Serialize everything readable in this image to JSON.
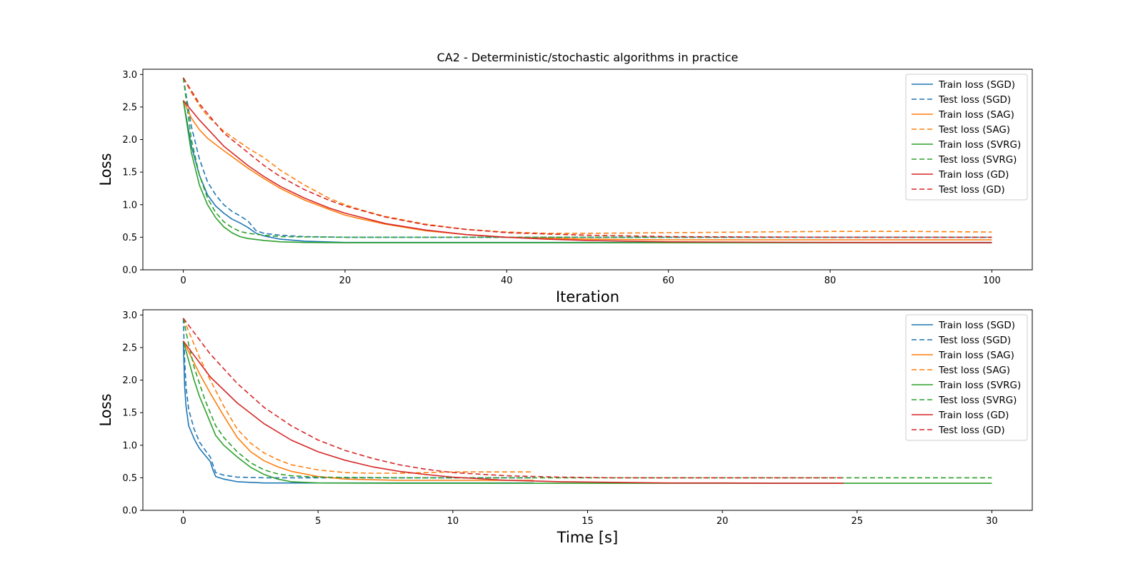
{
  "chart_data": [
    {
      "type": "line",
      "title": "CA2 - Deterministic/stochastic algorithms in practice",
      "xlabel": "Iteration",
      "ylabel": "Loss",
      "xlim": [
        -5,
        105
      ],
      "ylim": [
        0,
        3.08
      ],
      "xticks": [
        0,
        20,
        40,
        60,
        80,
        100
      ],
      "yticks": [
        0.0,
        0.5,
        1.0,
        1.5,
        2.0,
        2.5,
        3.0
      ],
      "grid": false,
      "legend_position": "top-right",
      "series": [
        {
          "name": "Train loss (SGD)",
          "color": "#1f77b4",
          "dash": "solid",
          "x": [
            0,
            1,
            2,
            3,
            4,
            5,
            6,
            7,
            8,
            9,
            10,
            12,
            15,
            20,
            30,
            50,
            100
          ],
          "y": [
            2.6,
            1.9,
            1.45,
            1.15,
            0.98,
            0.87,
            0.78,
            0.72,
            0.65,
            0.56,
            0.52,
            0.47,
            0.44,
            0.42,
            0.42,
            0.42,
            0.42
          ]
        },
        {
          "name": "Test loss (SGD)",
          "color": "#1f77b4",
          "dash": "dashed",
          "x": [
            0,
            1,
            2,
            3,
            4,
            5,
            6,
            7,
            8,
            9,
            10,
            12,
            15,
            20,
            30,
            50,
            100
          ],
          "y": [
            2.95,
            2.2,
            1.7,
            1.35,
            1.15,
            1.0,
            0.9,
            0.83,
            0.75,
            0.6,
            0.56,
            0.53,
            0.51,
            0.5,
            0.5,
            0.5,
            0.5
          ]
        },
        {
          "name": "Train loss (SAG)",
          "color": "#ff7f0e",
          "dash": "solid",
          "x": [
            0,
            1,
            2,
            3,
            5,
            8,
            10,
            12,
            15,
            18,
            20,
            22,
            25,
            30,
            35,
            40,
            50,
            60,
            80,
            100
          ],
          "y": [
            2.6,
            2.33,
            2.15,
            2.02,
            1.83,
            1.56,
            1.4,
            1.25,
            1.07,
            0.93,
            0.84,
            0.78,
            0.7,
            0.6,
            0.54,
            0.5,
            0.47,
            0.46,
            0.46,
            0.46
          ]
        },
        {
          "name": "Test loss (SAG)",
          "color": "#ff7f0e",
          "dash": "dashed",
          "x": [
            0,
            1,
            2,
            3,
            5,
            8,
            10,
            12,
            15,
            18,
            20,
            22,
            25,
            30,
            35,
            40,
            45,
            50,
            60,
            70,
            80,
            90,
            100
          ],
          "y": [
            2.95,
            2.72,
            2.52,
            2.36,
            2.13,
            1.87,
            1.72,
            1.53,
            1.3,
            1.1,
            1.0,
            0.92,
            0.82,
            0.7,
            0.62,
            0.58,
            0.56,
            0.56,
            0.57,
            0.58,
            0.59,
            0.59,
            0.58
          ]
        },
        {
          "name": "Train loss (SVRG)",
          "color": "#2ca02c",
          "dash": "solid",
          "x": [
            0,
            1,
            2,
            3,
            4,
            5,
            6,
            7,
            8,
            10,
            12,
            15,
            20,
            30,
            50,
            100
          ],
          "y": [
            2.6,
            1.8,
            1.3,
            1.0,
            0.8,
            0.66,
            0.57,
            0.51,
            0.48,
            0.45,
            0.43,
            0.42,
            0.415,
            0.415,
            0.415,
            0.415
          ]
        },
        {
          "name": "Test loss (SVRG)",
          "color": "#2ca02c",
          "dash": "dashed",
          "x": [
            0,
            1,
            2,
            3,
            4,
            5,
            6,
            7,
            8,
            10,
            12,
            15,
            20,
            30,
            50,
            100
          ],
          "y": [
            2.95,
            2.0,
            1.45,
            1.1,
            0.88,
            0.74,
            0.65,
            0.59,
            0.56,
            0.53,
            0.51,
            0.505,
            0.5,
            0.5,
            0.5,
            0.5
          ]
        },
        {
          "name": "Train loss (GD)",
          "color": "#d62728",
          "dash": "solid",
          "x": [
            0,
            2,
            5,
            8,
            10,
            12,
            15,
            18,
            20,
            25,
            30,
            35,
            40,
            45,
            50,
            60,
            80,
            100
          ],
          "y": [
            2.6,
            2.3,
            1.9,
            1.6,
            1.43,
            1.28,
            1.1,
            0.95,
            0.87,
            0.71,
            0.61,
            0.54,
            0.5,
            0.47,
            0.45,
            0.43,
            0.42,
            0.415
          ]
        },
        {
          "name": "Test loss (GD)",
          "color": "#d62728",
          "dash": "dashed",
          "x": [
            0,
            2,
            5,
            8,
            10,
            12,
            15,
            18,
            20,
            25,
            30,
            35,
            40,
            45,
            50,
            60,
            80,
            100
          ],
          "y": [
            2.95,
            2.55,
            2.1,
            1.8,
            1.6,
            1.43,
            1.23,
            1.07,
            0.98,
            0.81,
            0.69,
            0.62,
            0.57,
            0.55,
            0.53,
            0.51,
            0.5,
            0.5
          ]
        }
      ]
    },
    {
      "type": "line",
      "title": "",
      "xlabel": "Time [s]",
      "ylabel": "Loss",
      "xlim": [
        -1.5,
        31.5
      ],
      "ylim": [
        0,
        3.08
      ],
      "xticks": [
        0,
        5,
        10,
        15,
        20,
        25,
        30
      ],
      "yticks": [
        0.0,
        0.5,
        1.0,
        1.5,
        2.0,
        2.5,
        3.0
      ],
      "grid": false,
      "legend_position": "top-right",
      "series": [
        {
          "name": "Train loss (SGD)",
          "color": "#1f77b4",
          "dash": "solid",
          "x": [
            0,
            0.05,
            0.1,
            0.2,
            0.3,
            0.4,
            0.5,
            0.6,
            0.8,
            1.0,
            1.1,
            1.2,
            1.5,
            2.0,
            2.5,
            3.0,
            4.0,
            5.0,
            8.0,
            10.0,
            13.0
          ],
          "y": [
            2.6,
            1.9,
            1.6,
            1.3,
            1.2,
            1.1,
            1.02,
            0.95,
            0.85,
            0.75,
            0.62,
            0.52,
            0.48,
            0.44,
            0.43,
            0.42,
            0.42,
            0.42,
            0.42,
            0.42,
            0.42
          ]
        },
        {
          "name": "Test loss (SGD)",
          "color": "#1f77b4",
          "dash": "dashed",
          "x": [
            0,
            0.05,
            0.1,
            0.2,
            0.3,
            0.4,
            0.5,
            0.6,
            0.8,
            1.0,
            1.2,
            1.5,
            2.0,
            3.0,
            5.0,
            8.0,
            10.0,
            13.0
          ],
          "y": [
            2.95,
            2.3,
            1.9,
            1.55,
            1.4,
            1.25,
            1.15,
            1.05,
            0.93,
            0.82,
            0.58,
            0.54,
            0.51,
            0.5,
            0.5,
            0.5,
            0.5,
            0.5
          ]
        },
        {
          "name": "Train loss (SAG)",
          "color": "#ff7f0e",
          "dash": "solid",
          "x": [
            0,
            0.3,
            0.6,
            1.0,
            1.5,
            2.0,
            2.5,
            3.0,
            3.5,
            4.0,
            5.0,
            6.0,
            8.0,
            10.0,
            13.0
          ],
          "y": [
            2.6,
            2.35,
            2.1,
            1.8,
            1.45,
            1.12,
            0.9,
            0.76,
            0.67,
            0.6,
            0.52,
            0.48,
            0.46,
            0.46,
            0.46
          ]
        },
        {
          "name": "Test loss (SAG)",
          "color": "#ff7f0e",
          "dash": "dashed",
          "x": [
            0,
            0.3,
            0.6,
            1.0,
            1.5,
            2.0,
            2.5,
            3.0,
            3.5,
            4.0,
            5.0,
            6.0,
            7.0,
            8.0,
            9.0,
            10.0,
            11.0,
            12.0,
            13.0
          ],
          "y": [
            2.95,
            2.65,
            2.35,
            2.0,
            1.6,
            1.25,
            1.03,
            0.88,
            0.78,
            0.7,
            0.62,
            0.58,
            0.57,
            0.57,
            0.58,
            0.59,
            0.59,
            0.59,
            0.59
          ]
        },
        {
          "name": "Train loss (SVRG)",
          "color": "#2ca02c",
          "dash": "solid",
          "x": [
            0,
            0.2,
            0.4,
            0.6,
            0.8,
            1.0,
            1.2,
            1.5,
            2.0,
            2.5,
            3.0,
            3.5,
            4.0,
            5.0,
            8.0,
            10.0,
            15.0,
            20.0,
            25.0,
            30.0
          ],
          "y": [
            2.6,
            2.3,
            2.0,
            1.75,
            1.55,
            1.35,
            1.15,
            1.0,
            0.82,
            0.66,
            0.55,
            0.48,
            0.44,
            0.42,
            0.415,
            0.415,
            0.415,
            0.415,
            0.415,
            0.415
          ]
        },
        {
          "name": "Test loss (SVRG)",
          "color": "#2ca02c",
          "dash": "dashed",
          "x": [
            0,
            0.2,
            0.4,
            0.6,
            0.8,
            1.0,
            1.2,
            1.5,
            2.0,
            2.5,
            3.0,
            3.5,
            4.0,
            5.0,
            8.0,
            10.0,
            15.0,
            20.0,
            25.0,
            30.0
          ],
          "y": [
            2.95,
            2.55,
            2.2,
            1.95,
            1.7,
            1.5,
            1.3,
            1.12,
            0.9,
            0.73,
            0.62,
            0.56,
            0.53,
            0.51,
            0.5,
            0.5,
            0.5,
            0.5,
            0.5,
            0.5
          ]
        },
        {
          "name": "Train loss (GD)",
          "color": "#d62728",
          "dash": "solid",
          "x": [
            0,
            1,
            2,
            3,
            4,
            5,
            6,
            7,
            8,
            9,
            10,
            12,
            14,
            16,
            18,
            20,
            22,
            24.5
          ],
          "y": [
            2.6,
            2.05,
            1.65,
            1.33,
            1.08,
            0.9,
            0.77,
            0.67,
            0.6,
            0.55,
            0.51,
            0.46,
            0.44,
            0.43,
            0.42,
            0.42,
            0.415,
            0.415
          ]
        },
        {
          "name": "Test loss (GD)",
          "color": "#d62728",
          "dash": "dashed",
          "x": [
            0,
            1,
            2,
            3,
            4,
            5,
            6,
            7,
            8,
            9,
            10,
            12,
            14,
            16,
            18,
            20,
            22,
            24.5
          ],
          "y": [
            2.95,
            2.4,
            1.95,
            1.58,
            1.3,
            1.08,
            0.92,
            0.8,
            0.7,
            0.63,
            0.58,
            0.53,
            0.51,
            0.5,
            0.5,
            0.5,
            0.5,
            0.5
          ]
        }
      ]
    }
  ]
}
